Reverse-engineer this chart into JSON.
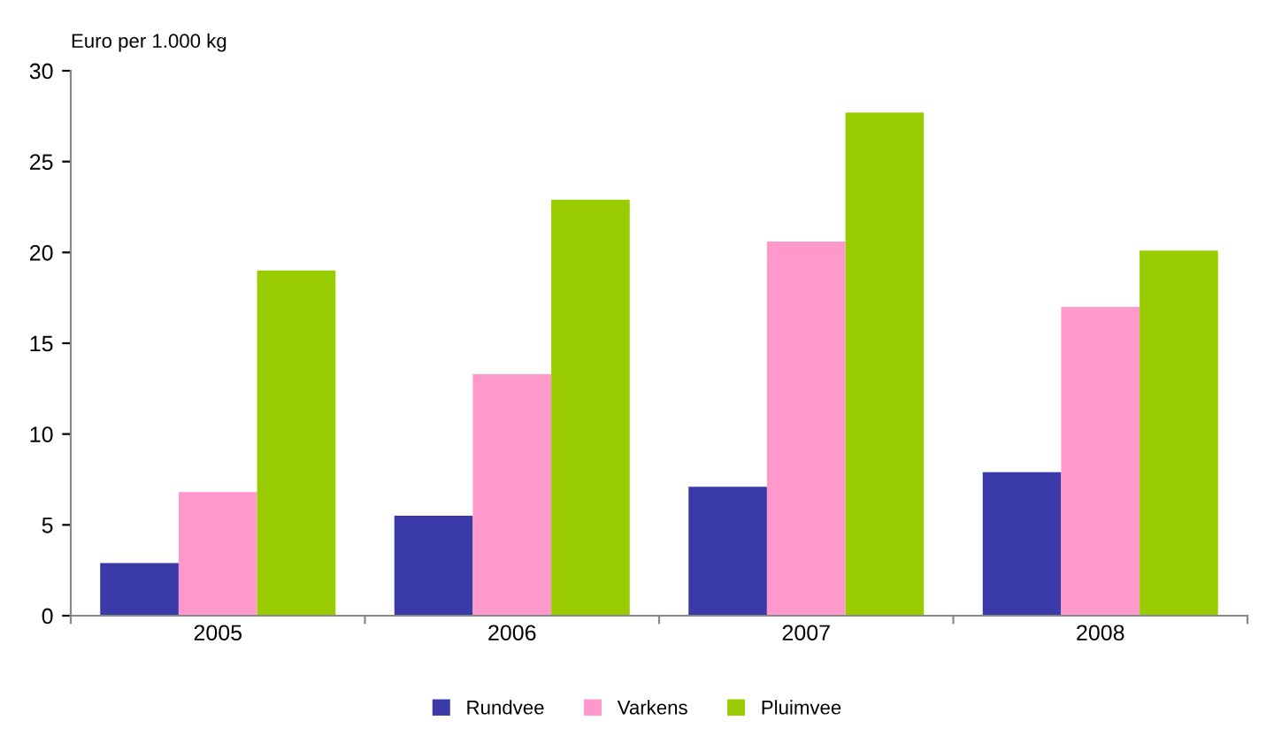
{
  "chart_data": {
    "type": "bar",
    "ylabel": "Euro per 1.000 kg",
    "categories": [
      "2005",
      "2006",
      "2007",
      "2008"
    ],
    "series": [
      {
        "name": "Rundvee",
        "color": "#3a3aa8",
        "values": [
          2.9,
          5.5,
          7.1,
          7.9
        ]
      },
      {
        "name": "Varkens",
        "color": "#ff99cc",
        "values": [
          6.8,
          13.3,
          20.6,
          17.0
        ]
      },
      {
        "name": "Pluimvee",
        "color": "#99cc00",
        "values": [
          19.0,
          22.9,
          27.7,
          20.1
        ]
      }
    ],
    "ylim": [
      0,
      30
    ],
    "yticks": [
      0,
      5,
      10,
      15,
      20,
      25,
      30
    ],
    "grid": false,
    "legend": "bottom"
  }
}
